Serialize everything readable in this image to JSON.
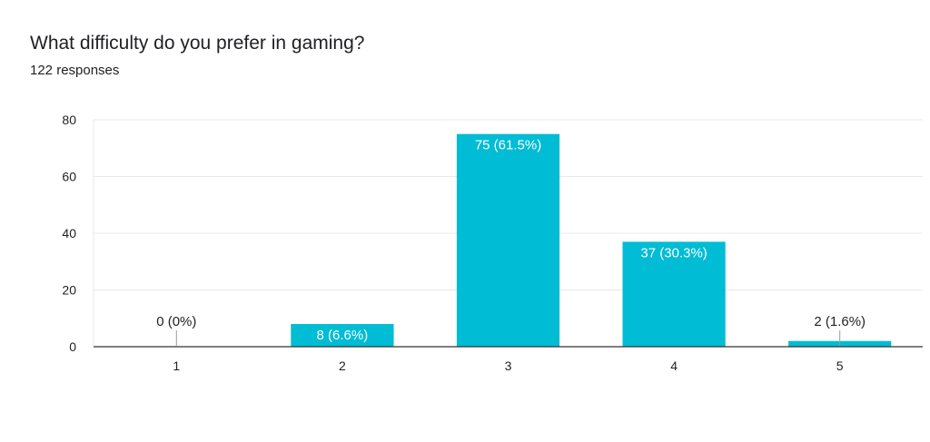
{
  "header": {
    "title": "What difficulty do you prefer in gaming?",
    "subtitle": "122 responses"
  },
  "colors": {
    "bar": "#00BCD4",
    "gridline": "#e8e8e8",
    "axis": "#333333",
    "label_inside": "#ffffff",
    "label_outside": "#222222"
  },
  "chart_data": {
    "type": "bar",
    "categories": [
      "1",
      "2",
      "3",
      "4",
      "5"
    ],
    "values": [
      0,
      8,
      75,
      37,
      2
    ],
    "data_labels": [
      "0 (0%)",
      "8 (6.6%)",
      "75 (61.5%)",
      "37 (30.3%)",
      "2 (1.6%)"
    ],
    "ylim": [
      0,
      80
    ],
    "yticks": [
      0,
      20,
      40,
      60,
      80
    ],
    "grid": true,
    "legend": false
  }
}
